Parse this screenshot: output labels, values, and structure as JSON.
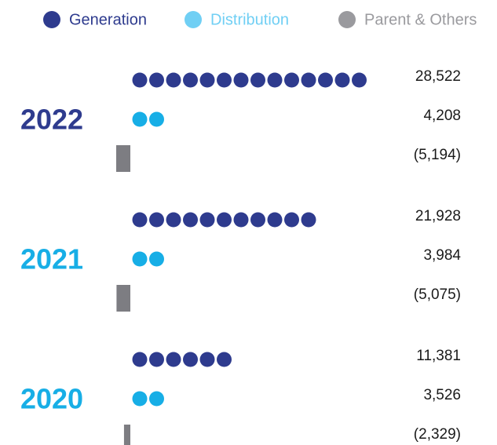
{
  "chart_data": {
    "type": "pictograph",
    "categories": [
      "2022",
      "2021",
      "2020"
    ],
    "category_colors": [
      "#2e3b8e",
      "#17aee6",
      "#17aee6"
    ],
    "legend": "top",
    "series": [
      {
        "name": "Generation",
        "color": "#2e3b8e",
        "legend_color": "#2e3b8e",
        "values": [
          28522,
          21928,
          11381
        ],
        "value_labels": [
          "28,522",
          "21,928",
          "11,381"
        ]
      },
      {
        "name": "Distribution",
        "color": "#17aee6",
        "legend_color": "#70cff4",
        "values": [
          4208,
          3984,
          3526
        ],
        "value_labels": [
          "4,208",
          "3,984",
          "3,526"
        ]
      },
      {
        "name": "Parent & Others",
        "color": "#7d7d82",
        "legend_color": "#9a9a9e",
        "values": [
          -5194,
          -5075,
          -2329
        ],
        "value_labels": [
          "(5,194)",
          "(5,075)",
          "(2,329)"
        ]
      }
    ]
  }
}
